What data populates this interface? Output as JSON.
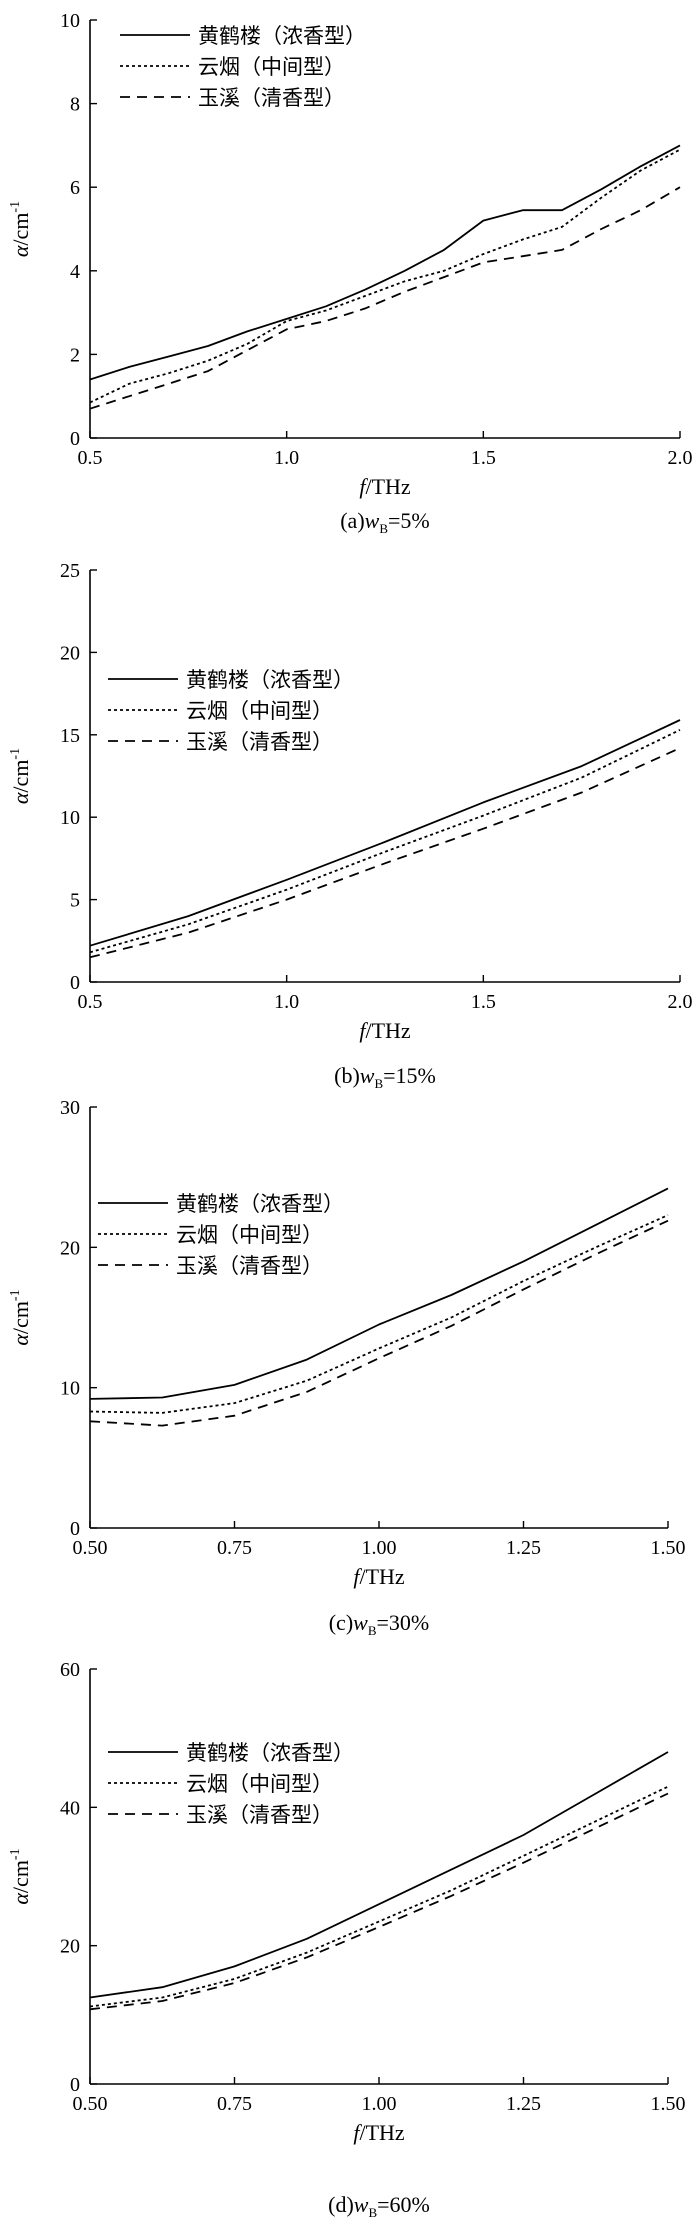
{
  "chart_data": [
    {
      "type": "line",
      "caption": {
        "prefix": "(a)",
        "var": "w",
        "sub": "B",
        "suffix": "=5%"
      },
      "xlabel": {
        "var": "f",
        "unit": "/THz"
      },
      "ylabel": {
        "var": "α",
        "unit": "/cm",
        "sup": "-1"
      },
      "xlim": [
        0.5,
        2.0
      ],
      "ylim": [
        0,
        10
      ],
      "xticks": [
        "0.5",
        "1.0",
        "1.5",
        "2.0"
      ],
      "yticks": [
        "0",
        "2",
        "4",
        "6",
        "8",
        "10"
      ],
      "grid": false,
      "legend": "top-left",
      "series": [
        {
          "name": "黄鹤楼（浓香型）",
          "style": "solid",
          "x": [
            0.5,
            0.6,
            0.7,
            0.8,
            0.9,
            1.0,
            1.1,
            1.2,
            1.3,
            1.4,
            1.5,
            1.6,
            1.7,
            1.8,
            1.9,
            2.0
          ],
          "values": [
            1.4,
            1.7,
            1.95,
            2.2,
            2.55,
            2.85,
            3.15,
            3.55,
            4.0,
            4.5,
            5.2,
            5.45,
            5.45,
            5.95,
            6.5,
            7.0
          ]
        },
        {
          "name": "云烟（中间型）",
          "style": "dotted",
          "x": [
            0.5,
            0.6,
            0.7,
            0.8,
            0.9,
            1.0,
            1.1,
            1.2,
            1.3,
            1.4,
            1.5,
            1.6,
            1.7,
            1.8,
            1.9,
            2.0
          ],
          "values": [
            0.85,
            1.3,
            1.55,
            1.85,
            2.25,
            2.8,
            3.05,
            3.4,
            3.75,
            4.0,
            4.4,
            4.75,
            5.05,
            5.75,
            6.4,
            6.9
          ]
        },
        {
          "name": "玉溪（清香型）",
          "style": "dashed",
          "x": [
            0.5,
            0.6,
            0.7,
            0.8,
            0.9,
            1.0,
            1.1,
            1.2,
            1.3,
            1.4,
            1.5,
            1.6,
            1.7,
            1.8,
            1.9,
            2.0
          ],
          "values": [
            0.7,
            1.0,
            1.3,
            1.6,
            2.1,
            2.6,
            2.8,
            3.1,
            3.5,
            3.85,
            4.2,
            4.35,
            4.5,
            5.0,
            5.45,
            6.0
          ]
        }
      ]
    },
    {
      "type": "line",
      "caption": {
        "prefix": "(b)",
        "var": "w",
        "sub": "B",
        "suffix": "=15%"
      },
      "xlabel": {
        "var": "f",
        "unit": "/THz"
      },
      "ylabel": {
        "var": "α",
        "unit": "/cm",
        "sup": "-1"
      },
      "xlim": [
        0.5,
        2.0
      ],
      "ylim": [
        0,
        25
      ],
      "xticks": [
        "0.5",
        "1.0",
        "1.5",
        "2.0"
      ],
      "yticks": [
        "0",
        "5",
        "10",
        "15",
        "20",
        "25"
      ],
      "grid": false,
      "legend": "top-left",
      "series": [
        {
          "name": "黄鹤楼（浓香型）",
          "style": "solid",
          "x": [
            0.5,
            0.75,
            1.0,
            1.25,
            1.5,
            1.75,
            2.0
          ],
          "values": [
            2.2,
            4.0,
            6.2,
            8.5,
            10.9,
            13.1,
            15.9
          ]
        },
        {
          "name": "云烟（中间型）",
          "style": "dotted",
          "x": [
            0.5,
            0.75,
            1.0,
            1.25,
            1.5,
            1.75,
            2.0
          ],
          "values": [
            1.8,
            3.5,
            5.6,
            7.9,
            10.1,
            12.4,
            15.3
          ]
        },
        {
          "name": "玉溪（清香型）",
          "style": "dashed",
          "x": [
            0.5,
            0.75,
            1.0,
            1.25,
            1.5,
            1.75,
            2.0
          ],
          "values": [
            1.5,
            3.0,
            5.0,
            7.2,
            9.3,
            11.5,
            14.2
          ]
        }
      ]
    },
    {
      "type": "line",
      "caption": {
        "prefix": "(c)",
        "var": "w",
        "sub": "B",
        "suffix": "=30%"
      },
      "xlabel": {
        "var": "f",
        "unit": "/THz"
      },
      "ylabel": {
        "var": "α",
        "unit": "/cm",
        "sup": "-1"
      },
      "xlim": [
        0.5,
        1.5
      ],
      "ylim": [
        0,
        30
      ],
      "xticks": [
        "0.50",
        "0.75",
        "1.00",
        "1.25",
        "1.50"
      ],
      "yticks": [
        "0",
        "10",
        "20",
        "30"
      ],
      "grid": false,
      "legend": "top-left",
      "series": [
        {
          "name": "黄鹤楼（浓香型）",
          "style": "solid",
          "x": [
            0.5,
            0.625,
            0.75,
            0.875,
            1.0,
            1.125,
            1.25,
            1.375,
            1.5
          ],
          "values": [
            9.2,
            9.3,
            10.2,
            12.0,
            14.5,
            16.6,
            19.0,
            21.6,
            24.2
          ]
        },
        {
          "name": "云烟（中间型）",
          "style": "dotted",
          "x": [
            0.5,
            0.625,
            0.75,
            0.875,
            1.0,
            1.125,
            1.25,
            1.375,
            1.5
          ],
          "values": [
            8.3,
            8.2,
            8.9,
            10.5,
            12.8,
            15.0,
            17.6,
            20.0,
            22.3
          ]
        },
        {
          "name": "玉溪（清香型）",
          "style": "dashed",
          "x": [
            0.5,
            0.625,
            0.75,
            0.875,
            1.0,
            1.125,
            1.25,
            1.375,
            1.5
          ],
          "values": [
            7.6,
            7.3,
            8.0,
            9.7,
            12.1,
            14.4,
            17.0,
            19.5,
            21.9
          ]
        }
      ]
    },
    {
      "type": "line",
      "caption": {
        "prefix": "(d)",
        "var": "w",
        "sub": "B",
        "suffix": "=60%"
      },
      "xlabel": {
        "var": "f",
        "unit": "/THz"
      },
      "ylabel": {
        "var": "α",
        "unit": "/cm",
        "sup": "-1"
      },
      "xlim": [
        0.5,
        1.5
      ],
      "ylim": [
        0,
        60
      ],
      "xticks": [
        "0.50",
        "0.75",
        "1.00",
        "1.25",
        "1.50"
      ],
      "yticks": [
        "0",
        "20",
        "40",
        "60"
      ],
      "grid": false,
      "legend": "top-left",
      "series": [
        {
          "name": "黄鹤楼（浓香型）",
          "style": "solid",
          "x": [
            0.5,
            0.625,
            0.75,
            0.875,
            1.0,
            1.125,
            1.25,
            1.375,
            1.5
          ],
          "values": [
            12.5,
            14.0,
            17.0,
            21.0,
            26.0,
            31.0,
            36.0,
            42.0,
            48.0
          ]
        },
        {
          "name": "云烟（中间型）",
          "style": "dotted",
          "x": [
            0.5,
            0.625,
            0.75,
            0.875,
            1.0,
            1.125,
            1.25,
            1.375,
            1.5
          ],
          "values": [
            11.2,
            12.5,
            15.2,
            19.0,
            23.5,
            28.0,
            33.0,
            38.0,
            43.0
          ]
        },
        {
          "name": "玉溪（清香型）",
          "style": "dashed",
          "x": [
            0.5,
            0.625,
            0.75,
            0.875,
            1.0,
            1.125,
            1.25,
            1.375,
            1.5
          ],
          "values": [
            10.8,
            12.0,
            14.6,
            18.3,
            22.7,
            27.2,
            32.0,
            37.0,
            42.0
          ]
        }
      ]
    }
  ]
}
